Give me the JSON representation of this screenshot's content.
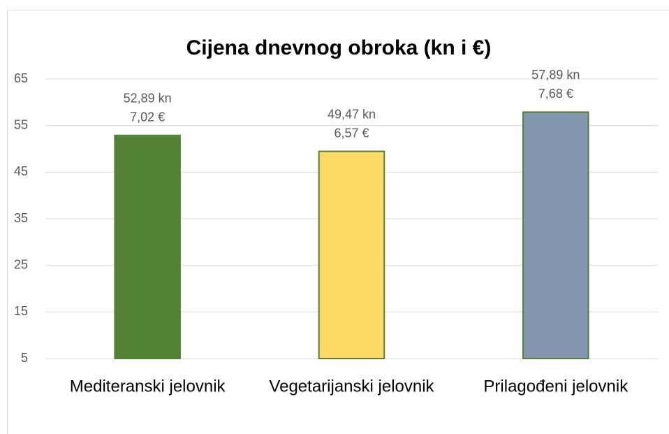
{
  "chart_data": {
    "type": "bar",
    "title": "Cijena dnevnog obroka (kn i €)",
    "categories": [
      "Mediteranski jelovnik",
      "Vegetarijanski jelovnik",
      "Prilagođeni jelovnik"
    ],
    "values": [
      52.89,
      49.47,
      57.89
    ],
    "value_labels": [
      "52,89 kn",
      "49,47 kn",
      "57,89 kn"
    ],
    "values_eur": [
      7.02,
      6.57,
      7.68
    ],
    "value_labels_eur": [
      "7,02 €",
      "6,57 €",
      "7,68 €"
    ],
    "colors": [
      "#548235",
      "#ffd966",
      "#8497b0"
    ],
    "edge_color": "#548235",
    "ylim": [
      5,
      65
    ],
    "yticks": [
      5,
      15,
      25,
      35,
      45,
      55,
      65
    ],
    "grid": true
  }
}
